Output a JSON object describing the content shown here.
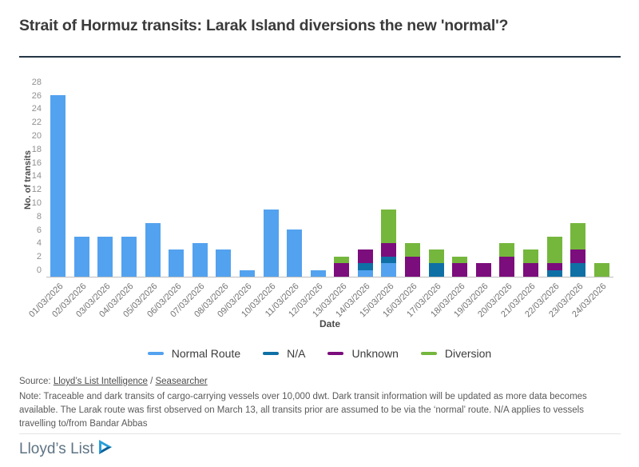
{
  "title": "Strait of Hormuz transits: Larak Island diversions the new 'normal'?",
  "chart_data": {
    "type": "bar",
    "stacked": true,
    "title": "Strait of Hormuz transits: Larak Island diversions the new 'normal'?",
    "xlabel": "Date",
    "ylabel": "No. of transits",
    "ylim": [
      0,
      28
    ],
    "ytick_step": 2,
    "grid": false,
    "legend_position": "bottom",
    "categories": [
      "01/03/2026",
      "02/03/2026",
      "03/03/2026",
      "04/03/2026",
      "05/03/2026",
      "06/03/2026",
      "07/03/2026",
      "08/03/2026",
      "09/03/2026",
      "10/03/2026",
      "11/03/2026",
      "12/03/2026",
      "13/03/2026",
      "14/03/2026",
      "15/03/2026",
      "16/03/2026",
      "17/03/2026",
      "18/03/2026",
      "19/03/2026",
      "20/03/2026",
      "21/03/2026",
      "22/03/2026",
      "23/03/2026",
      "24/03/2026"
    ],
    "series": [
      {
        "name": "Normal Route",
        "color": "#53a2ef",
        "values": [
          27,
          6,
          6,
          6,
          8,
          4,
          5,
          4,
          1,
          10,
          7,
          1,
          0,
          1,
          2,
          0,
          0,
          0,
          0,
          0,
          0,
          0,
          0,
          0
        ]
      },
      {
        "name": "N/A",
        "color": "#0f70a6",
        "values": [
          0,
          0,
          0,
          0,
          0,
          0,
          0,
          0,
          0,
          0,
          0,
          0,
          0,
          1,
          1,
          0,
          2,
          0,
          0,
          0,
          0,
          1,
          2,
          0
        ]
      },
      {
        "name": "Unknown",
        "color": "#7c0d7c",
        "values": [
          0,
          0,
          0,
          0,
          0,
          0,
          0,
          0,
          0,
          0,
          0,
          0,
          2,
          2,
          2,
          3,
          0,
          2,
          2,
          3,
          2,
          1,
          2,
          0
        ]
      },
      {
        "name": "Diversion",
        "color": "#75b73d",
        "values": [
          0,
          0,
          0,
          0,
          0,
          0,
          0,
          0,
          0,
          0,
          0,
          0,
          1,
          0,
          5,
          2,
          2,
          1,
          0,
          2,
          2,
          4,
          4,
          2
        ]
      }
    ]
  },
  "source": {
    "prefix": "Source: ",
    "link1": "Lloyd’s List Intelligence",
    "separator": " / ",
    "link2": "Seasearcher"
  },
  "note": "Note: Traceable and dark transits of cargo-carrying vessels over 10,000 dwt. Dark transit information will be updated as more data becomes available. The Larak route was first observed on March 13, all transits prior are assumed to be via the ‘normal’ route. N/A applies to vessels travelling to/from Bandar Abbas",
  "footer": {
    "logo_text": "Lloyd’s List"
  },
  "colors": {
    "title_rule": "#253646",
    "axis_text": "#8f8f8f",
    "logo_blue_light": "#2b9fd8",
    "logo_blue_dark": "#0d6398"
  }
}
